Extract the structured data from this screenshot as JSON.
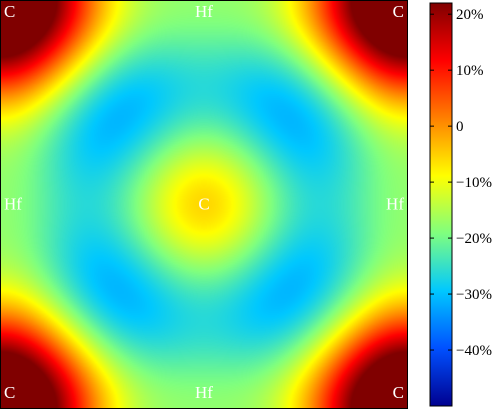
{
  "chart_data": {
    "type": "heatmap",
    "title": "",
    "xlabel": "",
    "ylabel": "",
    "grid": false,
    "legend": "colorbar-right",
    "colorbar": {
      "range": [
        -50,
        22
      ],
      "ticks": [
        {
          "value": 20,
          "label": "20%"
        },
        {
          "value": 10,
          "label": "10%"
        },
        {
          "value": 0,
          "label": "0"
        },
        {
          "value": -10,
          "label": "−10%"
        },
        {
          "value": -20,
          "label": "−20%"
        },
        {
          "value": -30,
          "label": "−30%"
        },
        {
          "value": -40,
          "label": "−40%"
        }
      ],
      "colormap": [
        "#00008f",
        "#0050ff",
        "#00c8ff",
        "#7fff7f",
        "#ffff00",
        "#ff8000",
        "#ff0000",
        "#800000"
      ]
    },
    "atoms": [
      {
        "label": "C",
        "x": 0,
        "y": 1
      },
      {
        "label": "Hf",
        "x": 0.5,
        "y": 1
      },
      {
        "label": "C",
        "x": 1,
        "y": 1
      },
      {
        "label": "Hf",
        "x": 0,
        "y": 0.5
      },
      {
        "label": "C",
        "x": 0.5,
        "y": 0.5
      },
      {
        "label": "Hf",
        "x": 1,
        "y": 0.5
      },
      {
        "label": "C",
        "x": 0,
        "y": 0
      },
      {
        "label": "Hf",
        "x": 0.5,
        "y": 0
      },
      {
        "label": "C",
        "x": 1,
        "y": 0
      }
    ]
  }
}
